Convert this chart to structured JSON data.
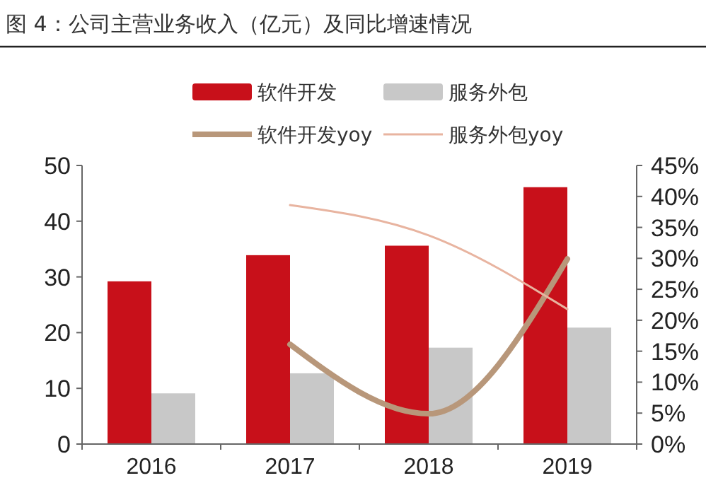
{
  "chart_data": {
    "type": "bar",
    "title": "图 4：公司主营业务收入（亿元）及同比增速情况",
    "categories": [
      "2016",
      "2017",
      "2018",
      "2019"
    ],
    "series": [
      {
        "name": "软件开发",
        "color": "#c8101a",
        "values": [
          29.2,
          33.9,
          35.6,
          46.1
        ]
      },
      {
        "name": "服务外包",
        "color": "#c8c8c8",
        "values": [
          9.1,
          12.7,
          17.3,
          20.9
        ]
      },
      {
        "name": "软件开发yoy",
        "type": "line",
        "axis": "y2",
        "color": "#b8977a",
        "values": [
          null,
          16.1,
          4.9,
          29.9
        ]
      },
      {
        "name": "服务外包yoy",
        "type": "line",
        "axis": "y2",
        "color": "#e8b4a0",
        "values": [
          null,
          38.6,
          33.7,
          21.8
        ]
      }
    ],
    "ylim": [
      0,
      50
    ],
    "yticks": [
      0,
      10,
      20,
      30,
      40,
      50
    ],
    "y2lim": [
      0,
      45
    ],
    "y2ticks": [
      {
        "value": 0,
        "label": "0%"
      },
      {
        "value": 5,
        "label": "5%"
      },
      {
        "value": 10,
        "label": "10%"
      },
      {
        "value": 15,
        "label": "15%"
      },
      {
        "value": 20,
        "label": "20%"
      },
      {
        "value": 25,
        "label": "25%"
      },
      {
        "value": 30,
        "label": "30%"
      },
      {
        "value": 35,
        "label": "35%"
      },
      {
        "value": 40,
        "label": "40%"
      },
      {
        "value": 45,
        "label": "45%"
      }
    ],
    "legend": "top",
    "grid": false
  }
}
